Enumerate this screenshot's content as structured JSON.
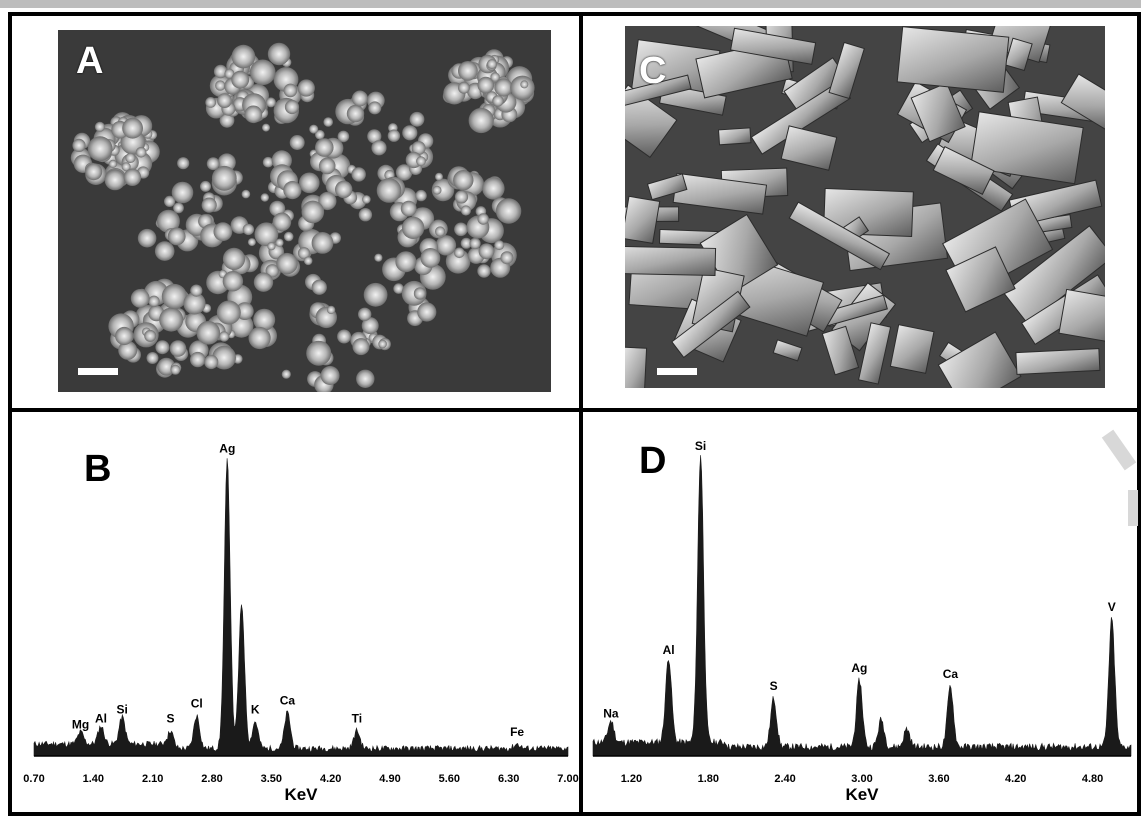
{
  "panels": {
    "A": {
      "label": "A"
    },
    "B": {
      "label": "B"
    },
    "C": {
      "label": "C"
    },
    "D": {
      "label": "D"
    }
  },
  "colors": {
    "border": "#000000",
    "spectrum_fill": "#1a1a1a",
    "sem_background": "#3a3a3a",
    "particles": "#bfbfbf"
  },
  "chart_data": [
    {
      "type": "area",
      "panel": "B",
      "xlabel": "KeV",
      "ylabel": "",
      "xlim": [
        0.7,
        7.0
      ],
      "ylim": [
        0,
        100
      ],
      "xticks": [
        "0.70",
        "1.40",
        "2.10",
        "2.80",
        "3.50",
        "4.20",
        "4.90",
        "5.60",
        "6.30",
        "7.00"
      ],
      "peaks": [
        {
          "label": "Mg",
          "x": 1.25,
          "y": 4
        },
        {
          "label": "Al",
          "x": 1.49,
          "y": 6
        },
        {
          "label": "Si",
          "x": 1.74,
          "y": 9
        },
        {
          "label": "S",
          "x": 2.31,
          "y": 6
        },
        {
          "label": "Cl",
          "x": 2.62,
          "y": 11
        },
        {
          "label": "Ag",
          "x": 2.98,
          "y": 96
        },
        {
          "label": "K",
          "x": 3.31,
          "y": 9
        },
        {
          "label": "Ca",
          "x": 3.69,
          "y": 12
        },
        {
          "label": "Ti",
          "x": 4.51,
          "y": 6
        },
        {
          "label": "Fe",
          "x": 6.4,
          "y": 1.5
        }
      ],
      "extra_peaks": [
        {
          "x": 3.15,
          "y": 48
        }
      ],
      "baseline": 2.5
    },
    {
      "type": "area",
      "panel": "D",
      "xlabel": "KeV",
      "ylabel": "",
      "xlim": [
        0.9,
        5.1
      ],
      "ylim": [
        0,
        100
      ],
      "xticks": [
        "1.20",
        "1.80",
        "2.40",
        "3.00",
        "3.60",
        "4.20",
        "4.80"
      ],
      "peaks": [
        {
          "label": "Na",
          "x": 1.04,
          "y": 7
        },
        {
          "label": "Al",
          "x": 1.49,
          "y": 28
        },
        {
          "label": "Si",
          "x": 1.74,
          "y": 95
        },
        {
          "label": "S",
          "x": 2.31,
          "y": 16
        },
        {
          "label": "Ag",
          "x": 2.98,
          "y": 22
        },
        {
          "label": "Ca",
          "x": 3.69,
          "y": 20
        },
        {
          "label": "V",
          "x": 4.95,
          "y": 42
        }
      ],
      "extra_peaks": [
        {
          "x": 3.15,
          "y": 9
        },
        {
          "x": 3.35,
          "y": 6
        }
      ],
      "baseline": 3
    }
  ]
}
